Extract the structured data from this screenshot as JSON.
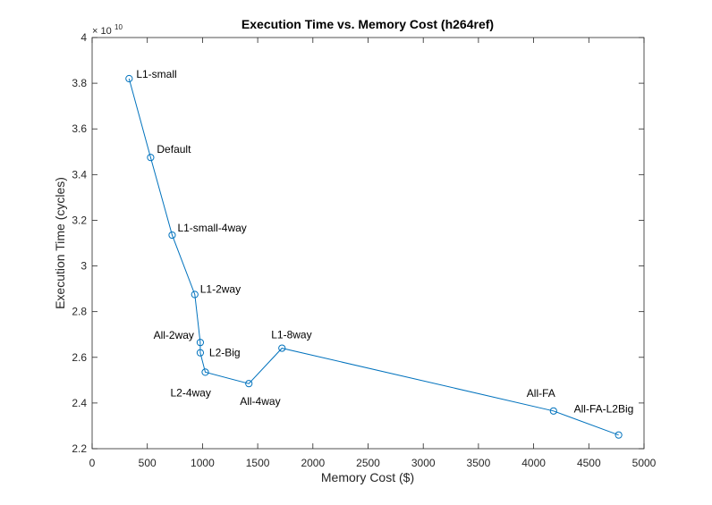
{
  "chart_data": {
    "type": "line",
    "title": "Execution Time vs. Memory Cost (h264ref)",
    "xlabel": "Memory Cost ($)",
    "ylabel": "Execution Time (cycles)",
    "xlim": [
      0,
      5000
    ],
    "ylim": [
      2.2,
      4.0
    ],
    "y_multiplier": {
      "base": "× 10",
      "exponent": "10"
    },
    "x_ticks": [
      "0",
      "500",
      "1000",
      "1500",
      "2000",
      "2500",
      "3000",
      "3500",
      "4000",
      "4500",
      "5000"
    ],
    "y_ticks": [
      "2.2",
      "2.4",
      "2.6",
      "2.8",
      "3",
      "3.2",
      "3.4",
      "3.6",
      "3.8",
      "4"
    ],
    "grid": false,
    "line_color": "#0072BD",
    "marker": "circle",
    "points": [
      {
        "label": "L1-small",
        "x": 335,
        "y": 3.82
      },
      {
        "label": "Default",
        "x": 530,
        "y": 3.475
      },
      {
        "label": "L1-small-4way",
        "x": 725,
        "y": 3.135
      },
      {
        "label": "L1-2way",
        "x": 930,
        "y": 2.875
      },
      {
        "label": "All-2way",
        "x": 980,
        "y": 2.665
      },
      {
        "label": "L2-Big",
        "x": 980,
        "y": 2.62
      },
      {
        "label": "L2-4way",
        "x": 1025,
        "y": 2.535
      },
      {
        "label": "All-4way",
        "x": 1420,
        "y": 2.485
      },
      {
        "label": "L1-8way",
        "x": 1720,
        "y": 2.64
      },
      {
        "label": "All-FA",
        "x": 4180,
        "y": 2.365
      },
      {
        "label": "All-FA-L2Big",
        "x": 4770,
        "y": 2.26
      }
    ]
  }
}
